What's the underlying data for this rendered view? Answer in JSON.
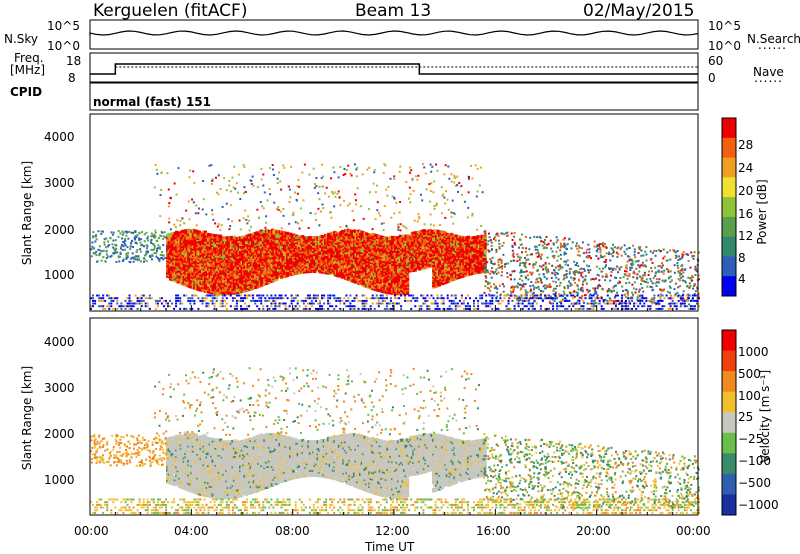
{
  "header": {
    "radar": "Kerguelen (fitACF)",
    "beam": "Beam 13",
    "date": "02/May/2015"
  },
  "status_panels": {
    "nsky_label": "N.Sky",
    "nsearch_label": "N.Search",
    "nsky_ticks": [
      "10^5",
      "10^0"
    ],
    "nsearch_ticks": [
      "10^5",
      "10^0"
    ],
    "freq_label": "Freq.",
    "freq_unit": "[MHz]",
    "freq_ticks": [
      "18",
      "8"
    ],
    "nave_label": "Nave",
    "nave_ticks": [
      "60",
      "0"
    ],
    "cpid_label": "CPID",
    "cpid_value": "normal (fast) 151",
    "legend_dots": "......"
  },
  "chart_data": [
    {
      "type": "heatmap",
      "name": "power",
      "ylabel": "Slant Range [km]",
      "xlabel": "",
      "ylim": [
        180,
        4600
      ],
      "yticks": [
        "4000",
        "3000",
        "2000",
        "1000"
      ],
      "ytick_values": [
        4000,
        3000,
        2000,
        1000
      ],
      "colorbar": {
        "label": "Power [dB]",
        "ticks": [
          "28",
          "24",
          "20",
          "16",
          "12",
          "8",
          "4"
        ],
        "tick_values": [
          28,
          24,
          20,
          16,
          12,
          8,
          4
        ],
        "range": [
          0,
          32
        ],
        "colors": [
          "#0000ee",
          "#2d5fb8",
          "#2f8a6a",
          "#58a04a",
          "#8fc43a",
          "#f0e030",
          "#f0a020",
          "#f06010",
          "#ee0000"
        ]
      }
    },
    {
      "type": "heatmap",
      "name": "velocity",
      "ylabel": "Slant Range [km]",
      "xlabel": "Time UT",
      "ylim": [
        180,
        4600
      ],
      "yticks": [
        "4000",
        "3000",
        "2000",
        "1000"
      ],
      "ytick_values": [
        4000,
        3000,
        2000,
        1000
      ],
      "xticks": [
        "00:00",
        "04:00",
        "08:00",
        "12:00",
        "16:00",
        "20:00",
        "00:00"
      ],
      "xtick_values": [
        0,
        4,
        8,
        12,
        16,
        20,
        24
      ],
      "colorbar": {
        "label": "Velocity [m s⁻¹]",
        "ticks": [
          "1000",
          "500",
          "100",
          "25",
          "−25",
          "−100",
          "−500",
          "−1000"
        ],
        "colors": [
          "#1a2fa0",
          "#2e5fb0",
          "#3a8a6a",
          "#6abf4a",
          "#c8c8c0",
          "#f0c030",
          "#f08a20",
          "#f04010",
          "#ee0000"
        ]
      }
    }
  ]
}
